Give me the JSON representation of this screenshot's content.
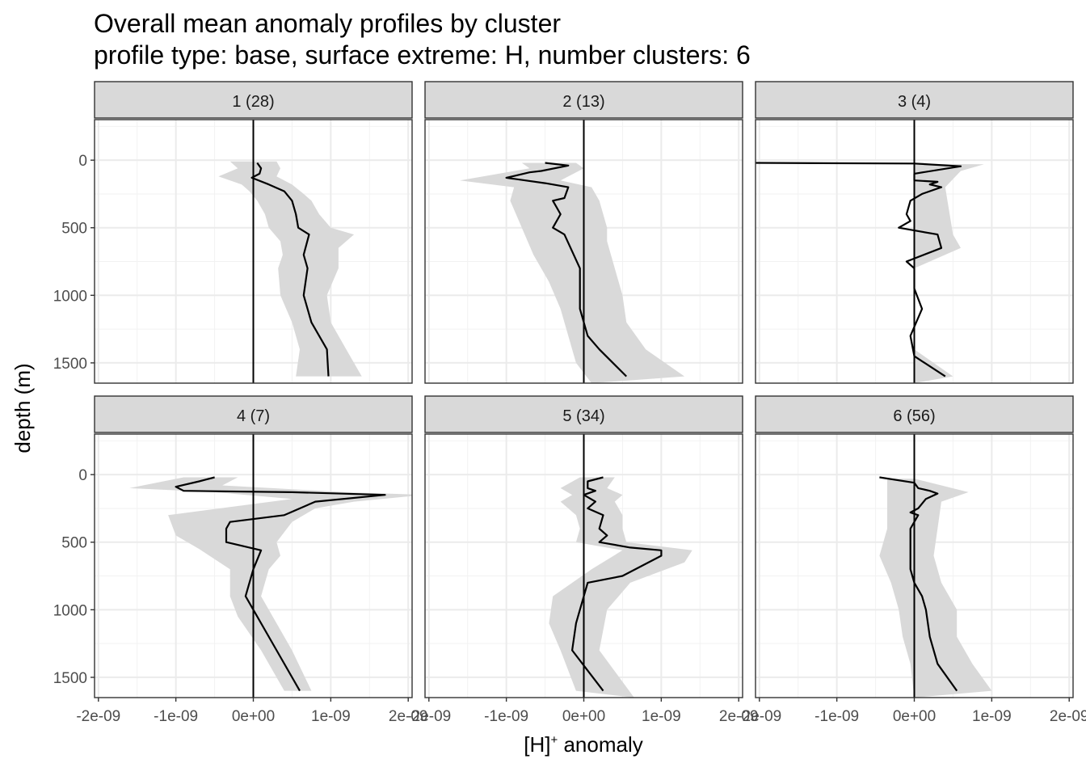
{
  "title_line1": "Overall mean anomaly profiles by cluster",
  "title_line2": "profile type: base, surface extreme: H, number clusters: 6",
  "chart_data": {
    "type": "line",
    "xlabel_main": "[H]",
    "xlabel_sup": "+",
    "xlabel_rest": " anomaly",
    "ylabel": "depth (m)",
    "xlim": [
      -2.05e-09,
      2.05e-09
    ],
    "ylim": [
      1650,
      -300
    ],
    "x_ticks": [
      -2e-09,
      -1e-09,
      0,
      1e-09,
      2e-09
    ],
    "x_tick_labels": [
      "-2e-09",
      "-1e-09",
      "0e+00",
      "1e-09",
      "2e-09"
    ],
    "y_ticks": [
      0,
      500,
      1000,
      1500
    ],
    "y_tick_labels": [
      "0",
      "500",
      "1000",
      "1500"
    ],
    "reference_line_x": 0,
    "ribbon_color": "#d9d9d9",
    "line_color": "#000000",
    "panels": [
      {
        "label": "1 (28)",
        "mean": [
          [
            5e-11,
            20
          ],
          [
            1e-10,
            60
          ],
          [
            8e-11,
            100
          ],
          [
            -2e-11,
            130
          ],
          [
            2e-10,
            180
          ],
          [
            4e-10,
            230
          ],
          [
            5e-10,
            300
          ],
          [
            5.5e-10,
            400
          ],
          [
            5.8e-10,
            500
          ],
          [
            7.2e-10,
            550
          ],
          [
            6.5e-10,
            700
          ],
          [
            7e-10,
            800
          ],
          [
            6.5e-10,
            1000
          ],
          [
            7.5e-10,
            1200
          ],
          [
            9.5e-10,
            1400
          ],
          [
            9.7e-10,
            1600
          ]
        ],
        "lower": [
          [
            -3e-10,
            10
          ],
          [
            -2e-10,
            60
          ],
          [
            -4.5e-10,
            120
          ],
          [
            -1.5e-10,
            180
          ],
          [
            -5e-11,
            230
          ],
          [
            5e-11,
            300
          ],
          [
            1.5e-10,
            400
          ],
          [
            2e-10,
            500
          ],
          [
            3.5e-10,
            600
          ],
          [
            3.8e-10,
            700
          ],
          [
            3.2e-10,
            800
          ],
          [
            3.5e-10,
            1000
          ],
          [
            5e-10,
            1200
          ],
          [
            6e-10,
            1400
          ],
          [
            5.5e-10,
            1600
          ]
        ],
        "upper": [
          [
            3e-10,
            10
          ],
          [
            3.5e-10,
            60
          ],
          [
            3e-10,
            120
          ],
          [
            5e-10,
            180
          ],
          [
            6.5e-10,
            250
          ],
          [
            7.5e-10,
            300
          ],
          [
            8.5e-10,
            400
          ],
          [
            1e-09,
            500
          ],
          [
            1.3e-09,
            550
          ],
          [
            1.1e-09,
            650
          ],
          [
            1.1e-09,
            800
          ],
          [
            9.5e-10,
            1000
          ],
          [
            1e-09,
            1200
          ],
          [
            1.2e-09,
            1400
          ],
          [
            1.4e-09,
            1600
          ]
        ]
      },
      {
        "label": "2 (13)",
        "mean": [
          [
            -5e-10,
            20
          ],
          [
            -2e-10,
            40
          ],
          [
            -5.5e-10,
            80
          ],
          [
            -7e-10,
            90
          ],
          [
            -1e-09,
            130
          ],
          [
            -5e-10,
            170
          ],
          [
            -2e-10,
            200
          ],
          [
            -2.5e-10,
            280
          ],
          [
            -4e-10,
            300
          ],
          [
            -3e-10,
            400
          ],
          [
            -4e-10,
            500
          ],
          [
            -2.5e-10,
            550
          ],
          [
            -5e-11,
            800
          ],
          [
            -5e-11,
            1100
          ],
          [
            5e-11,
            1300
          ],
          [
            2e-10,
            1400
          ],
          [
            5.5e-10,
            1600
          ]
        ],
        "lower": [
          [
            -8e-10,
            20
          ],
          [
            -7e-10,
            60
          ],
          [
            -1.6e-09,
            150
          ],
          [
            -9e-10,
            200
          ],
          [
            -9.5e-10,
            300
          ],
          [
            -8e-10,
            500
          ],
          [
            -6.5e-10,
            700
          ],
          [
            -4.5e-10,
            900
          ],
          [
            -3e-10,
            1100
          ],
          [
            -2e-10,
            1300
          ],
          [
            -1e-10,
            1500
          ],
          [
            1e-10,
            1650
          ]
        ],
        "upper": [
          [
            -1e-10,
            20
          ],
          [
            0.0,
            60
          ],
          [
            -3e-10,
            150
          ],
          [
            1e-10,
            200
          ],
          [
            2e-10,
            300
          ],
          [
            2.5e-10,
            400
          ],
          [
            3e-10,
            500
          ],
          [
            3e-10,
            600
          ],
          [
            4e-10,
            800
          ],
          [
            5e-10,
            1000
          ],
          [
            5.5e-10,
            1200
          ],
          [
            8e-10,
            1400
          ],
          [
            1.3e-09,
            1600
          ]
        ]
      },
      {
        "label": "3 (4)",
        "mean": [
          [
            -2.1e-09,
            20
          ],
          [
            0.0,
            25
          ],
          [
            6e-10,
            45
          ],
          [
            0.0,
            100
          ],
          [
            0.0,
            150
          ],
          [
            3e-10,
            160
          ],
          [
            2e-10,
            180
          ],
          [
            3.5e-10,
            200
          ],
          [
            1e-10,
            250
          ],
          [
            -5e-11,
            300
          ],
          [
            -1e-10,
            400
          ],
          [
            -5e-11,
            450
          ],
          [
            -2e-10,
            500
          ],
          [
            0.0,
            520
          ],
          [
            3e-10,
            550
          ],
          [
            3.5e-10,
            650
          ],
          [
            -1e-10,
            750
          ],
          [
            0.0,
            800
          ],
          [
            0.0,
            950
          ],
          [
            1e-10,
            1100
          ],
          [
            -5e-11,
            1300
          ],
          [
            0.0,
            1450
          ],
          [
            4e-10,
            1600
          ]
        ],
        "lower": [
          [
            -2.1e-09,
            20
          ],
          [
            0.0,
            30
          ],
          [
            0.0,
            1650
          ]
        ],
        "upper": [
          [
            9e-10,
            30
          ],
          [
            6e-10,
            80
          ],
          [
            4e-10,
            200
          ],
          [
            5e-10,
            550
          ],
          [
            6e-10,
            650
          ],
          [
            0.0,
            800
          ],
          [
            0.0,
            1400
          ],
          [
            5e-10,
            1600
          ]
        ]
      },
      {
        "label": "4 (7)",
        "mean": [
          [
            -5e-10,
            20
          ],
          [
            -7e-10,
            50
          ],
          [
            -1e-09,
            90
          ],
          [
            -9e-10,
            120
          ],
          [
            5e-10,
            130
          ],
          [
            1.7e-09,
            150
          ],
          [
            8e-10,
            200
          ],
          [
            4e-10,
            300
          ],
          [
            -3e-10,
            350
          ],
          [
            -3.5e-10,
            400
          ],
          [
            -3.5e-10,
            500
          ],
          [
            1e-10,
            560
          ],
          [
            0.0,
            700
          ],
          [
            -1e-10,
            900
          ],
          [
            0.0,
            1000
          ],
          [
            3e-10,
            1300
          ],
          [
            6e-10,
            1600
          ]
        ],
        "lower": [
          [
            -9e-10,
            20
          ],
          [
            -1.6e-09,
            100
          ],
          [
            -5e-10,
            130
          ],
          [
            5e-10,
            180
          ],
          [
            -1.1e-09,
            300
          ],
          [
            -1e-09,
            450
          ],
          [
            -7e-10,
            550
          ],
          [
            -3e-10,
            700
          ],
          [
            -3e-10,
            900
          ],
          [
            -2e-10,
            1050
          ],
          [
            1e-10,
            1300
          ],
          [
            4e-10,
            1600
          ]
        ],
        "upper": [
          [
            -2e-10,
            20
          ],
          [
            -4e-10,
            80
          ],
          [
            1.2e-09,
            130
          ],
          [
            2.2e-09,
            150
          ],
          [
            1.3e-09,
            200
          ],
          [
            8e-10,
            250
          ],
          [
            5e-10,
            350
          ],
          [
            3e-10,
            500
          ],
          [
            3.5e-10,
            600
          ],
          [
            2e-10,
            700
          ],
          [
            1e-10,
            900
          ],
          [
            2.5e-10,
            1050
          ],
          [
            5e-10,
            1300
          ],
          [
            7.5e-10,
            1600
          ]
        ]
      },
      {
        "label": "5 (34)",
        "mean": [
          [
            2.5e-10,
            20
          ],
          [
            5e-11,
            50
          ],
          [
            5e-11,
            100
          ],
          [
            1.5e-10,
            120
          ],
          [
            0.0,
            150
          ],
          [
            1.5e-10,
            200
          ],
          [
            5e-11,
            250
          ],
          [
            2.5e-10,
            300
          ],
          [
            2e-10,
            400
          ],
          [
            3e-10,
            450
          ],
          [
            2e-10,
            500
          ],
          [
            6e-10,
            540
          ],
          [
            1e-09,
            560
          ],
          [
            1e-09,
            600
          ],
          [
            5e-10,
            750
          ],
          [
            5e-11,
            800
          ],
          [
            -5e-11,
            1000
          ],
          [
            -1e-10,
            1100
          ],
          [
            -1.5e-10,
            1300
          ],
          [
            5e-11,
            1450
          ],
          [
            2.5e-10,
            1600
          ]
        ],
        "lower": [
          [
            -5e-11,
            20
          ],
          [
            -3e-10,
            100
          ],
          [
            -1.5e-10,
            150
          ],
          [
            -3e-10,
            200
          ],
          [
            -1e-10,
            300
          ],
          [
            -5e-11,
            400
          ],
          [
            -1e-10,
            500
          ],
          [
            5e-10,
            560
          ],
          [
            1e-10,
            700
          ],
          [
            -4e-10,
            900
          ],
          [
            -4.5e-10,
            1100
          ],
          [
            -3e-10,
            1300
          ],
          [
            -1e-10,
            1600
          ]
        ],
        "upper": [
          [
            4e-10,
            20
          ],
          [
            3e-10,
            100
          ],
          [
            5e-10,
            150
          ],
          [
            4e-10,
            200
          ],
          [
            5e-10,
            300
          ],
          [
            5e-10,
            400
          ],
          [
            5.5e-10,
            500
          ],
          [
            1.4e-09,
            560
          ],
          [
            1.3e-09,
            650
          ],
          [
            6e-10,
            800
          ],
          [
            3e-10,
            1000
          ],
          [
            2e-10,
            1300
          ],
          [
            6.5e-10,
            1650
          ]
        ]
      },
      {
        "label": "6 (56)",
        "mean": [
          [
            -4.5e-10,
            20
          ],
          [
            0.0,
            60
          ],
          [
            5e-11,
            100
          ],
          [
            2e-10,
            120
          ],
          [
            3e-10,
            140
          ],
          [
            1.5e-10,
            180
          ],
          [
            5e-11,
            250
          ],
          [
            -5e-11,
            280
          ],
          [
            5e-11,
            300
          ],
          [
            -5e-11,
            400
          ],
          [
            -5e-11,
            700
          ],
          [
            0.0,
            800
          ],
          [
            1e-10,
            900
          ],
          [
            1.5e-10,
            1000
          ],
          [
            2e-10,
            1200
          ],
          [
            3e-10,
            1400
          ],
          [
            5.5e-10,
            1600
          ]
        ],
        "lower": [
          [
            -3.5e-10,
            30
          ],
          [
            -3.5e-10,
            200
          ],
          [
            -3.5e-10,
            400
          ],
          [
            -4.5e-10,
            600
          ],
          [
            -3e-10,
            800
          ],
          [
            -2e-10,
            1000
          ],
          [
            -1.5e-10,
            1200
          ],
          [
            -5e-11,
            1400
          ],
          [
            0.0,
            1650
          ]
        ],
        "upper": [
          [
            0.0,
            30
          ],
          [
            7e-10,
            130
          ],
          [
            3.5e-10,
            200
          ],
          [
            3e-10,
            400
          ],
          [
            2.5e-10,
            600
          ],
          [
            3.5e-10,
            800
          ],
          [
            5.5e-10,
            1000
          ],
          [
            5.5e-10,
            1200
          ],
          [
            7.5e-10,
            1400
          ],
          [
            1e-09,
            1600
          ]
        ]
      }
    ]
  }
}
